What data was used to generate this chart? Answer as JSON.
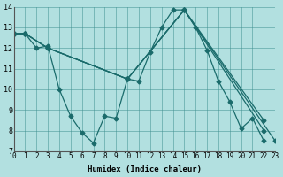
{
  "xlabel": "Humidex (Indice chaleur)",
  "ylabel": "",
  "background_color": "#b2e0e0",
  "grid_color": "#3d8f8f",
  "line_color": "#1a6b6b",
  "xlim": [
    0,
    23
  ],
  "ylim": [
    7,
    14
  ],
  "xticks": [
    0,
    1,
    2,
    3,
    4,
    5,
    6,
    7,
    8,
    9,
    10,
    11,
    12,
    13,
    14,
    15,
    16,
    17,
    18,
    19,
    20,
    21,
    22,
    23
  ],
  "yticks": [
    7,
    8,
    9,
    10,
    11,
    12,
    13,
    14
  ],
  "series": [
    {
      "x": [
        0,
        1,
        2,
        3,
        4,
        5,
        6,
        7,
        8,
        9,
        10,
        11,
        12,
        13,
        14,
        15,
        16,
        17,
        18,
        19,
        20,
        21,
        22
      ],
      "y": [
        12.7,
        12.7,
        12.0,
        12.1,
        10.0,
        8.7,
        7.9,
        7.4,
        8.7,
        8.6,
        10.5,
        10.4,
        11.8,
        13.0,
        13.85,
        13.85,
        13.0,
        11.9,
        10.4,
        9.4,
        8.1,
        8.6,
        7.5
      ]
    },
    {
      "x": [
        0,
        1,
        3,
        10,
        15,
        23
      ],
      "y": [
        12.7,
        12.7,
        12.0,
        10.5,
        13.85,
        7.5
      ]
    },
    {
      "x": [
        0,
        1,
        3,
        10,
        15,
        22
      ],
      "y": [
        12.7,
        12.7,
        12.0,
        10.5,
        13.85,
        8.0
      ]
    },
    {
      "x": [
        0,
        1,
        3,
        10,
        15,
        22
      ],
      "y": [
        12.7,
        12.7,
        12.0,
        10.5,
        13.85,
        8.5
      ]
    }
  ]
}
